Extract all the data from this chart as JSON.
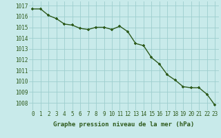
{
  "hours": [
    0,
    1,
    2,
    3,
    4,
    5,
    6,
    7,
    8,
    9,
    10,
    11,
    12,
    13,
    14,
    15,
    16,
    17,
    18,
    19,
    20,
    21,
    22,
    23
  ],
  "pressure": [
    1016.7,
    1016.7,
    1016.1,
    1015.8,
    1015.3,
    1015.2,
    1014.9,
    1014.8,
    1015.0,
    1015.0,
    1014.8,
    1015.1,
    1014.6,
    1013.5,
    1013.3,
    1012.2,
    1011.6,
    1010.6,
    1010.1,
    1009.5,
    1009.4,
    1009.4,
    1008.8,
    1007.8
  ],
  "line_color": "#2d5a1b",
  "bg_color": "#c8eaea",
  "grid_color": "#9ecece",
  "tick_color": "#2d5a1b",
  "label_color": "#2d5a1b",
  "xlabel": "Graphe pression niveau de la mer (hPa)",
  "ylim_min": 1007.3,
  "ylim_max": 1017.4,
  "ytick_min": 1008,
  "ytick_max": 1017,
  "marker": "+",
  "marker_size": 3,
  "line_width": 1.0,
  "font_size_label": 6.5,
  "font_size_tick": 5.5
}
